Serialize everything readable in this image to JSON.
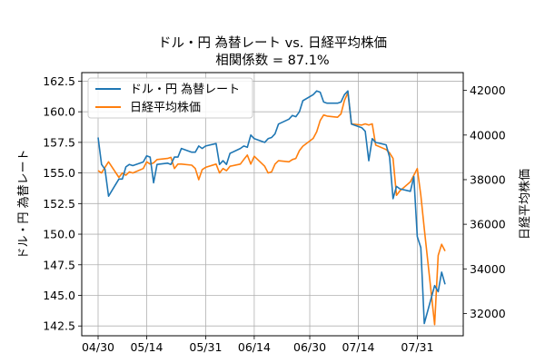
{
  "chart_data": {
    "type": "line",
    "title": "ドル・円 為替レート vs. 日経平均株価",
    "subtitle": "相関係数 = 87.1%",
    "ylabel_left": "ドル・円 為替レート",
    "ylabel_right": "日経平均株価",
    "xlabel": "",
    "grid": true,
    "legend_position": "top-left",
    "x_ticks": [
      "04/30",
      "05/14",
      "05/31",
      "06/14",
      "06/30",
      "07/14",
      "07/31"
    ],
    "y_left_ticks": [
      "142.5",
      "145.0",
      "147.5",
      "150.0",
      "152.5",
      "155.0",
      "157.5",
      "160.0",
      "162.5"
    ],
    "y_right_ticks": [
      "32000",
      "34000",
      "36000",
      "38000",
      "40000",
      "42000"
    ],
    "ylim_left": [
      141.7,
      163.2
    ],
    "ylim_right": [
      31000,
      42800
    ],
    "series": [
      {
        "name": "ドル・円 為替レート",
        "axis": "left",
        "color": "#1f77b4",
        "x": [
          "2024-04-30",
          "2024-05-01",
          "2024-05-02",
          "2024-05-03",
          "2024-05-06",
          "2024-05-07",
          "2024-05-08",
          "2024-05-09",
          "2024-05-10",
          "2024-05-13",
          "2024-05-14",
          "2024-05-15",
          "2024-05-16",
          "2024-05-17",
          "2024-05-20",
          "2024-05-21",
          "2024-05-22",
          "2024-05-23",
          "2024-05-24",
          "2024-05-27",
          "2024-05-28",
          "2024-05-29",
          "2024-05-30",
          "2024-05-31",
          "2024-06-03",
          "2024-06-04",
          "2024-06-05",
          "2024-06-06",
          "2024-06-07",
          "2024-06-10",
          "2024-06-11",
          "2024-06-12",
          "2024-06-13",
          "2024-06-14",
          "2024-06-17",
          "2024-06-18",
          "2024-06-19",
          "2024-06-20",
          "2024-06-21",
          "2024-06-24",
          "2024-06-25",
          "2024-06-26",
          "2024-06-27",
          "2024-06-28",
          "2024-07-01",
          "2024-07-02",
          "2024-07-03",
          "2024-07-04",
          "2024-07-05",
          "2024-07-08",
          "2024-07-09",
          "2024-07-10",
          "2024-07-11",
          "2024-07-12",
          "2024-07-15",
          "2024-07-16",
          "2024-07-17",
          "2024-07-18",
          "2024-07-19",
          "2024-07-22",
          "2024-07-23",
          "2024-07-24",
          "2024-07-25",
          "2024-07-26",
          "2024-07-29",
          "2024-07-30",
          "2024-07-31",
          "2024-08-01",
          "2024-08-02",
          "2024-08-05",
          "2024-08-06",
          "2024-08-07",
          "2024-08-08"
        ],
        "values": [
          157.9,
          155.7,
          155.3,
          153.1,
          154.5,
          154.5,
          155.5,
          155.7,
          155.6,
          155.9,
          156.4,
          156.3,
          154.2,
          155.7,
          155.8,
          155.7,
          156.3,
          156.3,
          157.0,
          156.7,
          156.7,
          157.2,
          157.0,
          157.2,
          157.4,
          155.7,
          156.0,
          155.7,
          156.6,
          157.0,
          157.2,
          157.1,
          158.1,
          157.8,
          157.5,
          157.8,
          157.9,
          158.2,
          159.0,
          159.4,
          159.7,
          159.6,
          160.0,
          160.9,
          161.4,
          161.7,
          161.6,
          160.8,
          160.7,
          160.7,
          160.8,
          161.4,
          161.7,
          159.0,
          158.7,
          158.4,
          156.0,
          157.8,
          157.5,
          157.3,
          156.3,
          152.9,
          153.9,
          153.7,
          153.5,
          154.7,
          149.8,
          148.9,
          142.7,
          145.8,
          145.3,
          146.9,
          145.9
        ]
      },
      {
        "name": "日経平均株価",
        "axis": "right",
        "color": "#ff7f0e",
        "x": [
          "2024-04-30",
          "2024-05-01",
          "2024-05-02",
          "2024-05-03",
          "2024-05-06",
          "2024-05-07",
          "2024-05-08",
          "2024-05-09",
          "2024-05-10",
          "2024-05-13",
          "2024-05-14",
          "2024-05-15",
          "2024-05-16",
          "2024-05-17",
          "2024-05-20",
          "2024-05-21",
          "2024-05-22",
          "2024-05-23",
          "2024-05-24",
          "2024-05-27",
          "2024-05-28",
          "2024-05-29",
          "2024-05-30",
          "2024-05-31",
          "2024-06-03",
          "2024-06-04",
          "2024-06-05",
          "2024-06-06",
          "2024-06-07",
          "2024-06-10",
          "2024-06-11",
          "2024-06-12",
          "2024-06-13",
          "2024-06-14",
          "2024-06-17",
          "2024-06-18",
          "2024-06-19",
          "2024-06-20",
          "2024-06-21",
          "2024-06-24",
          "2024-06-25",
          "2024-06-26",
          "2024-06-27",
          "2024-06-28",
          "2024-07-01",
          "2024-07-02",
          "2024-07-03",
          "2024-07-04",
          "2024-07-05",
          "2024-07-08",
          "2024-07-09",
          "2024-07-10",
          "2024-07-11",
          "2024-07-12",
          "2024-07-15",
          "2024-07-16",
          "2024-07-17",
          "2024-07-18",
          "2024-07-19",
          "2024-07-22",
          "2024-07-23",
          "2024-07-24",
          "2024-07-25",
          "2024-07-26",
          "2024-07-29",
          "2024-07-30",
          "2024-07-31",
          "2024-08-01",
          "2024-08-02",
          "2024-08-05",
          "2024-08-06",
          "2024-08-07",
          "2024-08-08"
        ],
        "values": [
          38400,
          38300,
          38550,
          38800,
          38100,
          38300,
          38200,
          38350,
          38300,
          38500,
          38800,
          38700,
          38750,
          38900,
          38950,
          39000,
          38500,
          38700,
          38700,
          38650,
          38500,
          38000,
          38450,
          38550,
          38700,
          38300,
          38500,
          38400,
          38600,
          38700,
          38900,
          39100,
          38700,
          39050,
          38600,
          38300,
          38350,
          38700,
          38850,
          38800,
          38900,
          38950,
          39300,
          39500,
          39850,
          40150,
          40650,
          40900,
          40850,
          40800,
          40950,
          41550,
          41900,
          40500,
          40450,
          40500,
          40450,
          40500,
          39550,
          39350,
          39200,
          38950,
          37300,
          37500,
          37900,
          38200,
          38500,
          37300,
          35800,
          31500,
          34600,
          35100,
          34800
        ]
      }
    ]
  }
}
